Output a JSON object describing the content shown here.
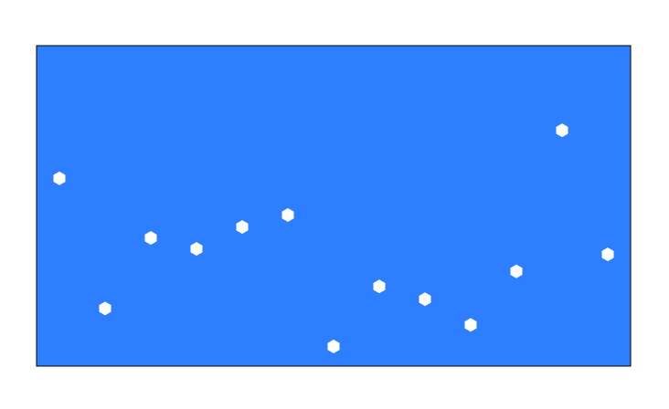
{
  "chart_data": {
    "type": "scatter",
    "marker": "hexagon",
    "background_color": "#2e7fff",
    "marker_color": "#ffffff",
    "border_color": "#000000",
    "grid": false,
    "axes_visible": false,
    "legend": "none",
    "xlim": [
      0.5,
      13.5
    ],
    "ylim": [
      0,
      7
    ],
    "x": [
      1,
      2,
      3,
      4,
      5,
      6,
      7,
      8,
      9,
      10,
      11,
      12,
      13
    ],
    "y": [
      4.1,
      1.26,
      2.8,
      2.56,
      3.04,
      3.3,
      0.43,
      1.74,
      1.46,
      0.9,
      2.07,
      5.15,
      2.44
    ]
  }
}
